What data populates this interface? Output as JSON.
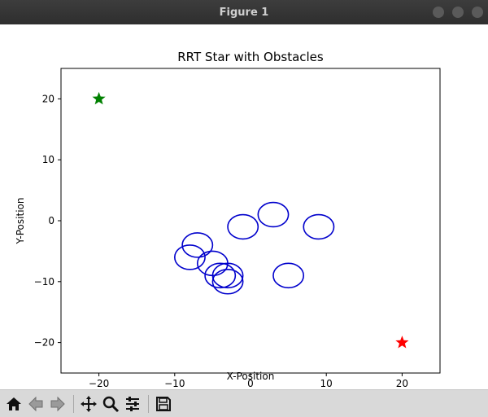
{
  "window": {
    "title": "Figure 1"
  },
  "toolbar": {
    "buttons": [
      {
        "name": "home-icon"
      },
      {
        "name": "back-icon"
      },
      {
        "name": "forward-icon"
      },
      {
        "name": "pan-icon"
      },
      {
        "name": "zoom-icon"
      },
      {
        "name": "configure-subplots-icon"
      },
      {
        "name": "save-icon"
      }
    ]
  },
  "chart_data": {
    "type": "scatter",
    "title": "RRT Star with Obstacles",
    "xlabel": "X-Position",
    "ylabel": "Y-Position",
    "xlim": [
      -25,
      25
    ],
    "ylim": [
      -25,
      25
    ],
    "xticks": [
      -20,
      -10,
      0,
      10,
      20
    ],
    "yticks": [
      20,
      10,
      0,
      -10,
      -20
    ],
    "xtick_labels": [
      "−20",
      "−10",
      "0",
      "10",
      "20"
    ],
    "ytick_labels": [
      "20",
      "10",
      "0",
      "−10",
      "−20"
    ],
    "grid": false,
    "start": {
      "x": -20,
      "y": 20,
      "marker": "star",
      "color": "#008000"
    },
    "goal": {
      "x": 20,
      "y": -20,
      "marker": "star",
      "color": "#ff0000"
    },
    "obstacle_color": "#0000cc",
    "obstacles": [
      {
        "x": 3,
        "y": 1,
        "r": 2
      },
      {
        "x": -1,
        "y": -1,
        "r": 2
      },
      {
        "x": 9,
        "y": -1,
        "r": 2
      },
      {
        "x": -7,
        "y": -4,
        "r": 2
      },
      {
        "x": -8,
        "y": -6,
        "r": 2
      },
      {
        "x": -5,
        "y": -7,
        "r": 2
      },
      {
        "x": -4,
        "y": -9,
        "r": 2
      },
      {
        "x": -3,
        "y": -9,
        "r": 2
      },
      {
        "x": -3,
        "y": -10,
        "r": 2
      },
      {
        "x": 5,
        "y": -9,
        "r": 2
      }
    ]
  }
}
